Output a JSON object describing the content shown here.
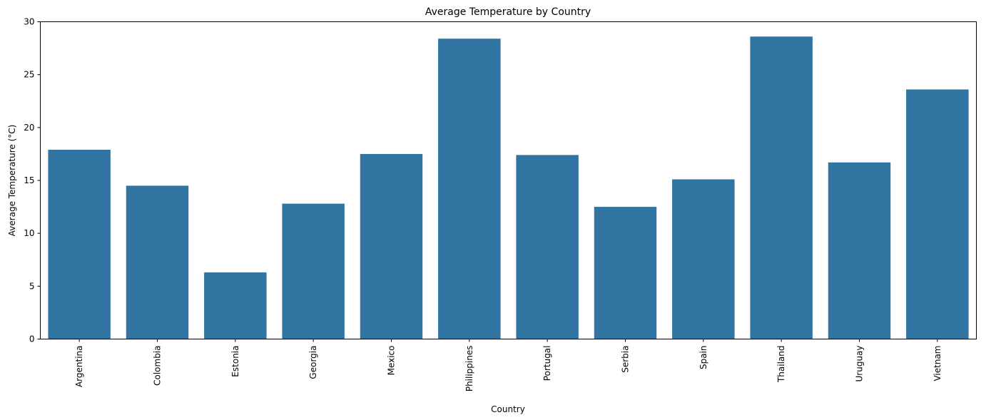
{
  "chart_data": {
    "type": "bar",
    "title": "Average Temperature by Country",
    "xlabel": "Country",
    "ylabel": "Average Temperature (°C)",
    "categories": [
      "Argentina",
      "Colombia",
      "Estonia",
      "Georgia",
      "Mexico",
      "Philippines",
      "Portugal",
      "Serbia",
      "Spain",
      "Thailand",
      "Uruguay",
      "Vietnam"
    ],
    "values": [
      17.9,
      14.5,
      6.3,
      12.8,
      17.5,
      28.4,
      17.4,
      12.5,
      15.1,
      28.6,
      16.7,
      23.6
    ],
    "yticks": [
      0,
      5,
      10,
      15,
      20,
      25,
      30
    ],
    "ylim": [
      0,
      30
    ],
    "grid": false,
    "bar_color": "#3274a1"
  }
}
